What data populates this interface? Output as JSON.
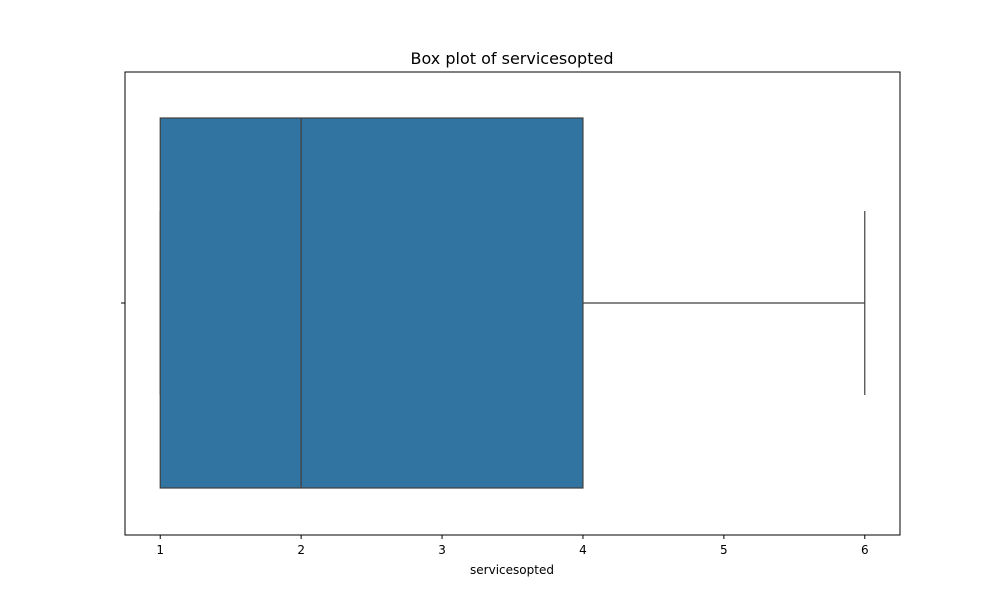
{
  "chart_data": {
    "type": "box",
    "title": "Box plot of servicesopted",
    "xlabel": "servicesopted",
    "ylabel": "",
    "orientation": "horizontal",
    "xlim": [
      0.75,
      6.25
    ],
    "xticks": [
      1,
      2,
      3,
      4,
      5,
      6
    ],
    "xtick_labels": [
      "1",
      "2",
      "3",
      "4",
      "5",
      "6"
    ],
    "box": {
      "whisker_low": 1,
      "q1": 1,
      "median": 2,
      "q3": 4,
      "whisker_high": 6
    },
    "colors": {
      "box_fill": "#3274a1",
      "line": "#3f3f3f"
    },
    "grid": false,
    "legend": "none"
  }
}
